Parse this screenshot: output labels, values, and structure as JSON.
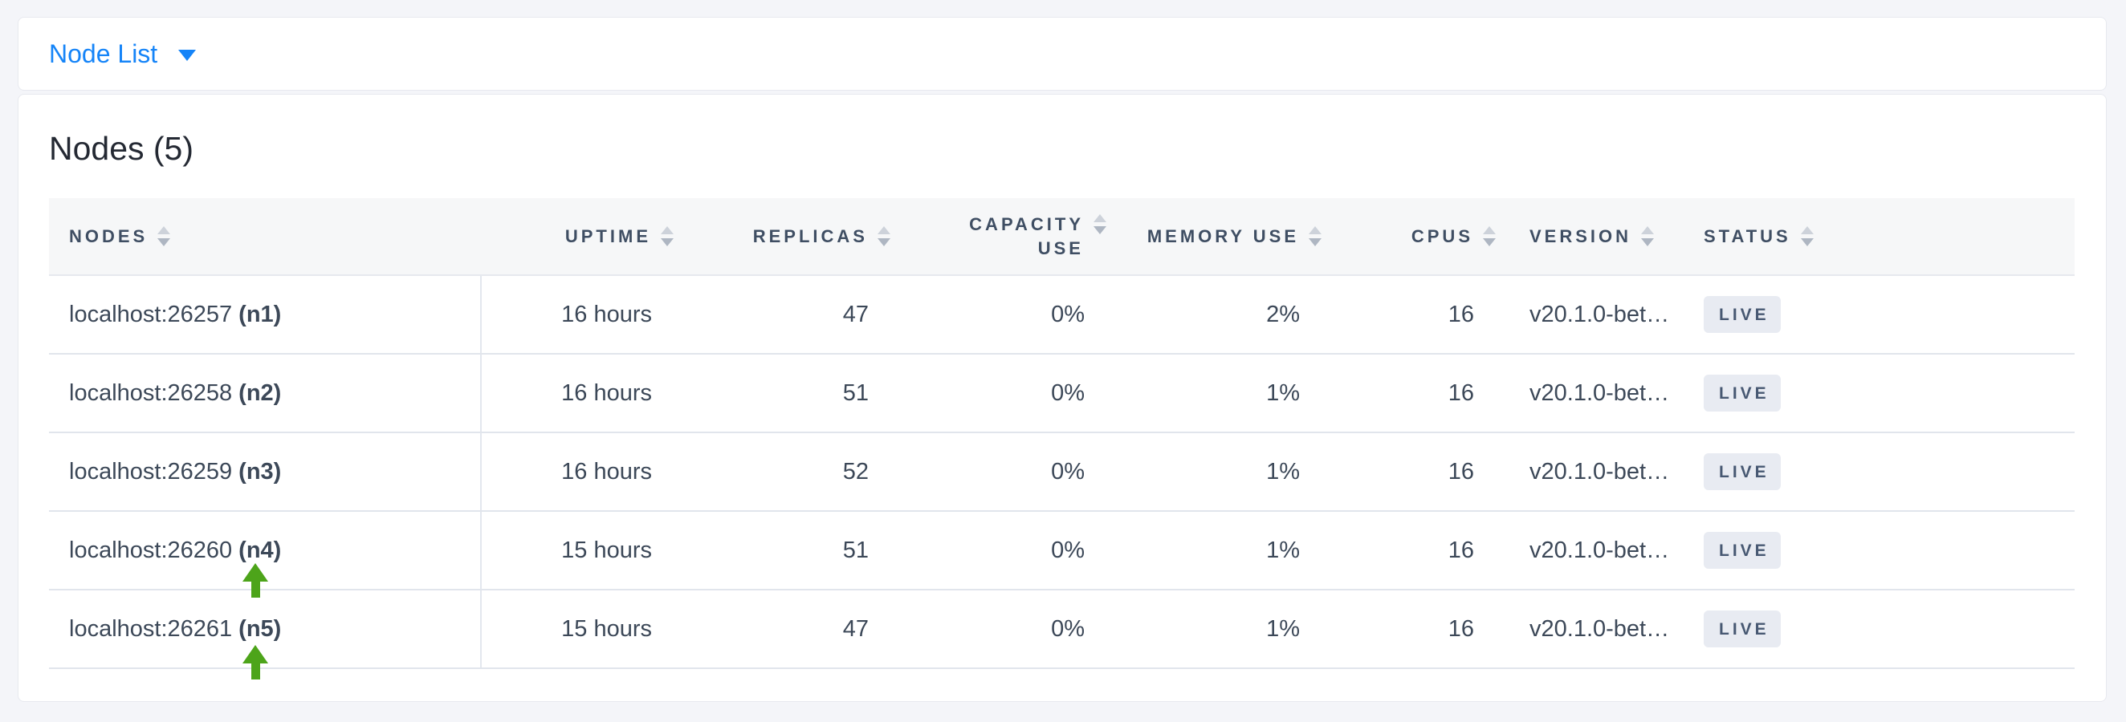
{
  "view_selector": {
    "label": "Node List",
    "icon": "caret-down"
  },
  "page": {
    "title": "Nodes (5)"
  },
  "table": {
    "columns": [
      {
        "key": "nodes",
        "label": "NODES"
      },
      {
        "key": "uptime",
        "label": "UPTIME"
      },
      {
        "key": "replicas",
        "label": "REPLICAS"
      },
      {
        "key": "capacity_use",
        "label": "CAPACITY USE"
      },
      {
        "key": "memory_use",
        "label": "MEMORY USE"
      },
      {
        "key": "cpus",
        "label": "CPUS"
      },
      {
        "key": "version",
        "label": "VERSION"
      },
      {
        "key": "status",
        "label": "STATUS"
      }
    ],
    "rows": [
      {
        "address": "localhost:26257",
        "name": "(n1)",
        "uptime": "16 hours",
        "replicas": "47",
        "capacity_use": "0%",
        "memory_use": "2%",
        "cpus": "16",
        "version": "v20.1.0-bet…",
        "status": "LIVE"
      },
      {
        "address": "localhost:26258",
        "name": "(n2)",
        "uptime": "16 hours",
        "replicas": "51",
        "capacity_use": "0%",
        "memory_use": "1%",
        "cpus": "16",
        "version": "v20.1.0-bet…",
        "status": "LIVE"
      },
      {
        "address": "localhost:26259",
        "name": "(n3)",
        "uptime": "16 hours",
        "replicas": "52",
        "capacity_use": "0%",
        "memory_use": "1%",
        "cpus": "16",
        "version": "v20.1.0-bet…",
        "status": "LIVE"
      },
      {
        "address": "localhost:26260",
        "name": "(n4)",
        "uptime": "15 hours",
        "replicas": "51",
        "capacity_use": "0%",
        "memory_use": "1%",
        "cpus": "16",
        "version": "v20.1.0-bet…",
        "status": "LIVE",
        "annotated": true
      },
      {
        "address": "localhost:26261",
        "name": "(n5)",
        "uptime": "15 hours",
        "replicas": "47",
        "capacity_use": "0%",
        "memory_use": "1%",
        "cpus": "16",
        "version": "v20.1.0-bet…",
        "status": "LIVE",
        "annotated": true
      }
    ]
  },
  "annotations": {
    "arrow_targets": [
      "(n4)",
      "(n5)"
    ],
    "arrow_color": "#4da41a"
  },
  "colors": {
    "accent_blue": "#1584f8",
    "page_background": "#f4f5f9",
    "header_background": "#f6f7f8",
    "badge_background": "#e8ebf2",
    "text_dark": "#3c4858"
  },
  "icons": {
    "caret": "caret-down-icon",
    "sort": "sort-icon"
  }
}
